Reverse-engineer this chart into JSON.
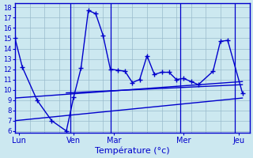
{
  "ylabel_values": [
    6,
    7,
    8,
    9,
    10,
    11,
    12,
    13,
    14,
    15,
    16,
    17,
    18
  ],
  "ylim": [
    5.8,
    18.4
  ],
  "xlim": [
    0,
    32
  ],
  "background_color": "#cce8f0",
  "line_color": "#0000cc",
  "grid_color": "#99bbcc",
  "xtick_positions": [
    0.5,
    8.0,
    13.5,
    23.0,
    30.5
  ],
  "xtick_labels": [
    "Lun",
    "Ven",
    "Mar",
    "Mer",
    "Jeu"
  ],
  "sep_lines": [
    7.5,
    13.0,
    22.5,
    30.0
  ],
  "main_line_x": [
    0,
    1,
    3,
    5,
    7,
    8,
    9,
    10,
    11,
    12,
    13,
    14,
    15,
    16,
    17,
    18,
    19,
    20,
    21,
    22,
    23,
    24,
    25,
    27,
    28,
    29,
    31
  ],
  "main_line_y": [
    15,
    12.2,
    9.0,
    7.0,
    6.0,
    9.3,
    12.1,
    17.7,
    17.4,
    15.3,
    12.0,
    11.9,
    11.8,
    10.7,
    11.0,
    13.3,
    11.5,
    11.7,
    11.7,
    11.0,
    11.1,
    10.8,
    10.5,
    11.8,
    14.7,
    14.8,
    9.7
  ],
  "upper_line_x": [
    0,
    31
  ],
  "upper_line_y": [
    9.2,
    10.8
  ],
  "lower_line_x": [
    0,
    31
  ],
  "lower_line_y": [
    7.0,
    9.2
  ],
  "mid_line_x": [
    7,
    31
  ],
  "mid_line_y": [
    9.7,
    10.5
  ],
  "xlabel": "Température (°c)",
  "xlabel_fontsize": 8
}
